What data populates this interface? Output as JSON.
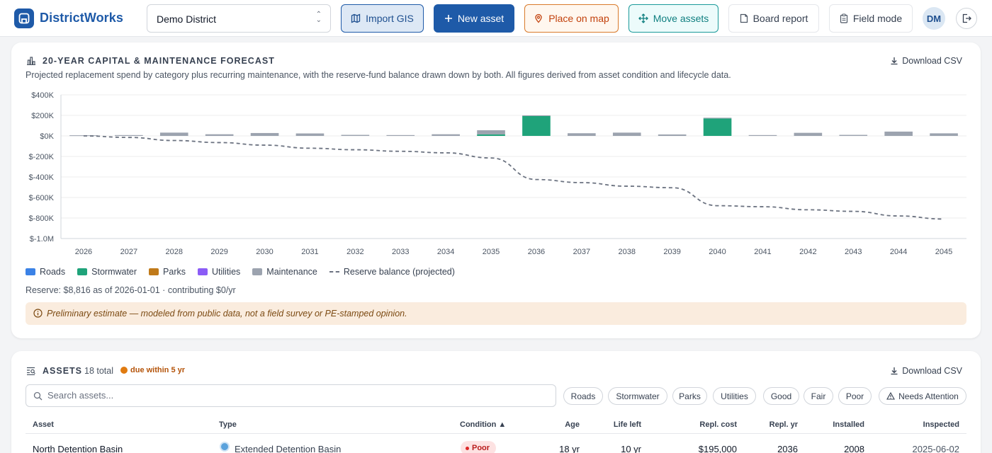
{
  "app": {
    "name": "DistrictWorks"
  },
  "header": {
    "district": "Demo District",
    "buttons": {
      "import_gis": "Import GIS",
      "new_asset": "New asset",
      "place_on_map": "Place on map",
      "move_assets": "Move assets",
      "board_report": "Board report",
      "field_mode": "Field mode"
    },
    "user_initials": "DM"
  },
  "forecast": {
    "title": "20-YEAR CAPITAL & MAINTENANCE FORECAST",
    "subtitle": "Projected replacement spend by category plus recurring maintenance, with the reserve-fund balance drawn down by both. All figures derived from asset condition and lifecycle data.",
    "download_label": "Download CSV",
    "legend": [
      {
        "label": "Roads",
        "color": "#3b82e6"
      },
      {
        "label": "Stormwater",
        "color": "#1fa37a"
      },
      {
        "label": "Parks",
        "color": "#c07a1a"
      },
      {
        "label": "Utilities",
        "color": "#8b5cf6"
      },
      {
        "label": "Maintenance",
        "color": "#9ca3af"
      },
      {
        "label": "Reserve balance (projected)",
        "color": "#6b7280"
      }
    ],
    "reserve_note": "Reserve: $8,816 as of 2026-01-01 · contributing $0/yr",
    "warning": "Preliminary estimate — modeled from public data, not a field survey or PE-stamped opinion."
  },
  "chart_data": {
    "type": "bar",
    "categories": [
      "2026",
      "2027",
      "2028",
      "2029",
      "2030",
      "2031",
      "2032",
      "2033",
      "2034",
      "2035",
      "2036",
      "2037",
      "2038",
      "2039",
      "2040",
      "2041",
      "2042",
      "2043",
      "2044",
      "2045"
    ],
    "y_tick_labels": [
      "$400K",
      "$200K",
      "$0K",
      "$-200K",
      "$-400K",
      "$-600K",
      "$-800K",
      "$-1.0M"
    ],
    "ylim": [
      -1000000,
      400000
    ],
    "stacked": true,
    "grid": true,
    "legend_position": "bottom-left",
    "series": [
      {
        "name": "Roads",
        "color": "#3b82e6",
        "values": [
          0,
          0,
          0,
          0,
          0,
          0,
          0,
          0,
          0,
          0,
          0,
          0,
          0,
          0,
          0,
          0,
          0,
          0,
          0,
          0
        ]
      },
      {
        "name": "Stormwater",
        "color": "#1fa37a",
        "values": [
          0,
          0,
          0,
          0,
          0,
          0,
          0,
          0,
          0,
          15000,
          195000,
          0,
          0,
          0,
          170000,
          0,
          0,
          0,
          0,
          0
        ]
      },
      {
        "name": "Parks",
        "color": "#c07a1a",
        "values": [
          0,
          0,
          0,
          0,
          0,
          0,
          0,
          0,
          0,
          0,
          0,
          0,
          0,
          0,
          0,
          0,
          0,
          0,
          0,
          0
        ]
      },
      {
        "name": "Utilities",
        "color": "#8b5cf6",
        "values": [
          0,
          0,
          0,
          0,
          0,
          0,
          0,
          0,
          0,
          0,
          0,
          0,
          0,
          0,
          0,
          0,
          0,
          0,
          0,
          0
        ]
      },
      {
        "name": "Maintenance",
        "color": "#9ca3af",
        "values": [
          6000,
          8000,
          32000,
          16000,
          28000,
          24000,
          10000,
          8000,
          16000,
          40000,
          5000,
          26000,
          32000,
          14000,
          7000,
          8000,
          30000,
          10000,
          42000,
          25000
        ]
      }
    ],
    "line": {
      "name": "Reserve balance (projected)",
      "color": "#6b7280",
      "values": [
        0,
        -15000,
        -45000,
        -65000,
        -90000,
        -120000,
        -135000,
        -150000,
        -165000,
        -215000,
        -425000,
        -455000,
        -490000,
        -505000,
        -680000,
        -690000,
        -720000,
        -735000,
        -780000,
        -810000
      ]
    }
  },
  "assets": {
    "title": "ASSETS",
    "count": "18 total",
    "due_label": "due within 5 yr",
    "download_label": "Download CSV",
    "search_placeholder": "Search assets...",
    "filters": [
      "Roads",
      "Stormwater",
      "Parks",
      "Utilities",
      "Good",
      "Fair",
      "Poor",
      "Needs Attention"
    ],
    "columns": {
      "asset": "Asset",
      "type": "Type",
      "condition": "Condition ▲",
      "age": "Age",
      "life_left": "Life left",
      "repl_cost": "Repl. cost",
      "repl_yr": "Repl. yr",
      "installed": "Installed",
      "inspected": "Inspected"
    },
    "rows": [
      {
        "asset": "North Detention Basin",
        "type": "Extended Detention Basin",
        "condition": "Poor",
        "age": "18 yr",
        "life_left": "10 yr",
        "repl_cost": "$195,000",
        "repl_yr": "2036",
        "installed": "2008",
        "inspected": "2025-06-02"
      }
    ]
  }
}
